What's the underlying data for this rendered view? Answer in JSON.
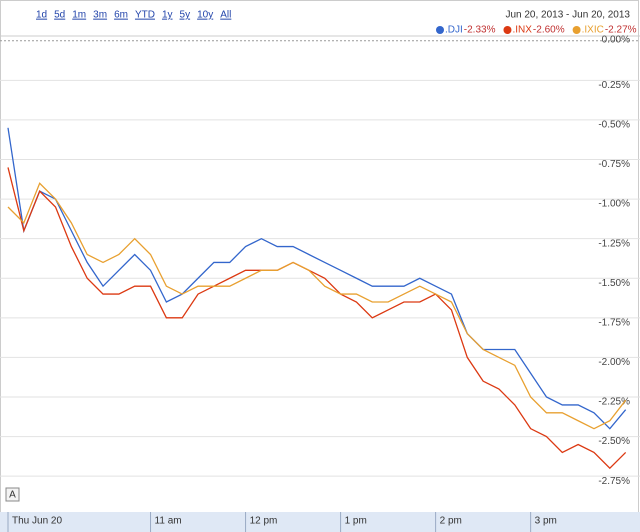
{
  "range_buttons": [
    "1d",
    "5d",
    "1m",
    "3m",
    "6m",
    "YTD",
    "1y",
    "5y",
    "10y",
    "All"
  ],
  "date_range": "Jun 20, 2013  -  Jun 20, 2013",
  "chart_data": {
    "type": "line",
    "x": [
      570,
      580,
      590,
      600,
      610,
      620,
      630,
      640,
      650,
      660,
      670,
      680,
      690,
      700,
      710,
      720,
      730,
      740,
      750,
      760,
      770,
      780,
      790,
      800,
      810,
      820,
      830,
      840,
      850,
      860,
      870,
      880,
      890,
      900,
      910,
      920,
      930,
      940,
      950,
      960
    ],
    "xlim": [
      570,
      964
    ],
    "xticks": [
      {
        "value": 570,
        "label": "Thu Jun 20"
      },
      {
        "value": 660,
        "label": "11 am"
      },
      {
        "value": 720,
        "label": "12 pm"
      },
      {
        "value": 780,
        "label": "1 pm"
      },
      {
        "value": 840,
        "label": "2 pm"
      },
      {
        "value": 900,
        "label": "3 pm"
      }
    ],
    "ylim": [
      -2.85,
      0.03
    ],
    "yticks": [
      {
        "value": 0,
        "label": "0.00%"
      },
      {
        "value": -0.25,
        "label": "-0.25%"
      },
      {
        "value": -0.5,
        "label": "-0.50%"
      },
      {
        "value": -0.75,
        "label": "-0.75%"
      },
      {
        "value": -1,
        "label": "-1.00%"
      },
      {
        "value": -1.25,
        "label": "-1.25%"
      },
      {
        "value": -1.5,
        "label": "-1.50%"
      },
      {
        "value": -1.75,
        "label": "-1.75%"
      },
      {
        "value": -2,
        "label": "-2.00%"
      },
      {
        "value": -2.25,
        "label": "-2.25%"
      },
      {
        "value": -2.5,
        "label": "-2.50%"
      },
      {
        "value": -2.75,
        "label": "-2.75%"
      }
    ],
    "grid": true,
    "annotation": "A",
    "series": [
      {
        "name": ".DJI",
        "color": "#3366cc",
        "change": {
          "value": -2.33,
          "label": "-2.33%"
        },
        "values": [
          -0.55,
          -1.2,
          -0.95,
          -1.0,
          -1.2,
          -1.4,
          -1.55,
          -1.45,
          -1.35,
          -1.45,
          -1.65,
          -1.6,
          -1.5,
          -1.4,
          -1.4,
          -1.3,
          -1.25,
          -1.3,
          -1.3,
          -1.35,
          -1.4,
          -1.45,
          -1.5,
          -1.55,
          -1.55,
          -1.55,
          -1.5,
          -1.55,
          -1.6,
          -1.85,
          -1.95,
          -1.95,
          -1.95,
          -2.1,
          -2.25,
          -2.3,
          -2.3,
          -2.35,
          -2.45,
          -2.33
        ]
      },
      {
        "name": ".INX",
        "color": "#dc3912",
        "change": {
          "value": -2.6,
          "label": "-2.60%"
        },
        "values": [
          -0.8,
          -1.2,
          -0.95,
          -1.05,
          -1.3,
          -1.5,
          -1.6,
          -1.6,
          -1.55,
          -1.55,
          -1.75,
          -1.75,
          -1.6,
          -1.55,
          -1.5,
          -1.45,
          -1.45,
          -1.45,
          -1.4,
          -1.45,
          -1.5,
          -1.6,
          -1.65,
          -1.75,
          -1.7,
          -1.65,
          -1.65,
          -1.6,
          -1.7,
          -2.0,
          -2.15,
          -2.2,
          -2.3,
          -2.45,
          -2.5,
          -2.6,
          -2.55,
          -2.6,
          -2.7,
          -2.6
        ]
      },
      {
        "name": ".IXIC",
        "color": "#e8a030",
        "change": {
          "value": -2.27,
          "label": "-2.27%"
        },
        "values": [
          -1.05,
          -1.15,
          -0.9,
          -1.0,
          -1.15,
          -1.35,
          -1.4,
          -1.35,
          -1.25,
          -1.35,
          -1.55,
          -1.6,
          -1.55,
          -1.55,
          -1.55,
          -1.5,
          -1.45,
          -1.45,
          -1.4,
          -1.45,
          -1.55,
          -1.6,
          -1.6,
          -1.65,
          -1.65,
          -1.6,
          -1.55,
          -1.6,
          -1.65,
          -1.85,
          -1.95,
          -2.0,
          -2.05,
          -2.25,
          -2.35,
          -2.35,
          -2.4,
          -2.45,
          -2.4,
          -2.27
        ]
      }
    ]
  }
}
